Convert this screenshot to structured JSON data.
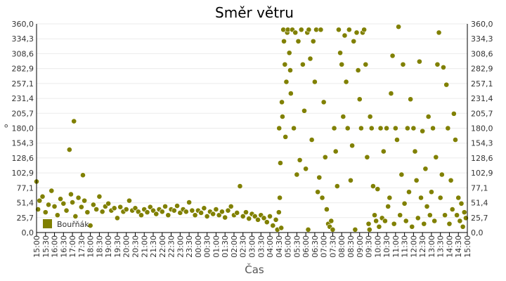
{
  "chart_data": {
    "type": "scatter",
    "title": "Směr větru",
    "xlabel": "Čas",
    "ylabel": "°",
    "ylim": [
      0,
      360
    ],
    "y_ticks": [
      "0,0",
      "25,7",
      "51,4",
      "77,1",
      "102,9",
      "128,6",
      "154,3",
      "180,0",
      "205,7",
      "231,4",
      "257,1",
      "282,9",
      "308,6",
      "334,3",
      "360,0"
    ],
    "x_ticks": [
      "15:00",
      "15:30",
      "16:00",
      "16:30",
      "17:00",
      "17:30",
      "18:00",
      "18:30",
      "19:00",
      "19:30",
      "20:00",
      "20:30",
      "21:00",
      "21:30",
      "22:00",
      "22:30",
      "23:00",
      "23:30",
      "00:00",
      "00:30",
      "01:00",
      "01:30",
      "02:00",
      "02:30",
      "03:00",
      "03:30",
      "04:00",
      "04:30",
      "05:00",
      "05:30",
      "06:00",
      "06:30",
      "07:00",
      "07:30",
      "08:00",
      "08:30",
      "09:00",
      "09:30",
      "10:00",
      "10:30",
      "11:00",
      "11:30",
      "12:00",
      "12:30",
      "13:00",
      "13:30",
      "14:00",
      "14:30",
      "15:00"
    ],
    "grid": true,
    "legend_position": "bottom-left",
    "series": [
      {
        "name": "Bouřňák",
        "color": "#808000",
        "points": [
          [
            "15:00",
            88
          ],
          [
            "15:05",
            40
          ],
          [
            "15:10",
            55
          ],
          [
            "15:20",
            62
          ],
          [
            "15:30",
            35
          ],
          [
            "15:40",
            48
          ],
          [
            "15:50",
            72
          ],
          [
            "16:00",
            45
          ],
          [
            "16:10",
            30
          ],
          [
            "16:20",
            58
          ],
          [
            "16:30",
            50
          ],
          [
            "16:40",
            38
          ],
          [
            "16:50",
            143
          ],
          [
            "16:55",
            66
          ],
          [
            "17:00",
            52
          ],
          [
            "17:05",
            192
          ],
          [
            "17:10",
            28
          ],
          [
            "17:20",
            60
          ],
          [
            "17:30",
            44
          ],
          [
            "17:35",
            99
          ],
          [
            "17:40",
            55
          ],
          [
            "17:50",
            35
          ],
          [
            "18:00",
            12
          ],
          [
            "18:10",
            48
          ],
          [
            "18:20",
            40
          ],
          [
            "18:30",
            62
          ],
          [
            "18:40",
            36
          ],
          [
            "18:50",
            45
          ],
          [
            "19:00",
            50
          ],
          [
            "19:10",
            38
          ],
          [
            "19:20",
            42
          ],
          [
            "19:30",
            25
          ],
          [
            "19:40",
            44
          ],
          [
            "19:50",
            36
          ],
          [
            "20:00",
            40
          ],
          [
            "20:10",
            55
          ],
          [
            "20:20",
            38
          ],
          [
            "20:30",
            42
          ],
          [
            "20:40",
            36
          ],
          [
            "20:50",
            30
          ],
          [
            "21:00",
            40
          ],
          [
            "21:10",
            35
          ],
          [
            "21:20",
            44
          ],
          [
            "21:30",
            38
          ],
          [
            "21:40",
            32
          ],
          [
            "21:50",
            40
          ],
          [
            "22:00",
            36
          ],
          [
            "22:10",
            45
          ],
          [
            "22:20",
            30
          ],
          [
            "22:30",
            40
          ],
          [
            "22:40",
            38
          ],
          [
            "22:50",
            46
          ],
          [
            "23:00",
            34
          ],
          [
            "23:10",
            40
          ],
          [
            "23:20",
            36
          ],
          [
            "23:30",
            52
          ],
          [
            "23:40",
            38
          ],
          [
            "23:50",
            30
          ],
          [
            "00:00",
            38
          ],
          [
            "00:10",
            34
          ],
          [
            "00:20",
            42
          ],
          [
            "00:30",
            28
          ],
          [
            "00:40",
            36
          ],
          [
            "00:50",
            32
          ],
          [
            "01:00",
            40
          ],
          [
            "01:10",
            30
          ],
          [
            "01:20",
            36
          ],
          [
            "01:30",
            26
          ],
          [
            "01:40",
            38
          ],
          [
            "01:50",
            45
          ],
          [
            "02:00",
            30
          ],
          [
            "02:10",
            34
          ],
          [
            "02:20",
            80
          ],
          [
            "02:30",
            28
          ],
          [
            "02:40",
            35
          ],
          [
            "02:50",
            24
          ],
          [
            "03:00",
            32
          ],
          [
            "03:10",
            28
          ],
          [
            "03:20",
            22
          ],
          [
            "03:30",
            30
          ],
          [
            "03:40",
            25
          ],
          [
            "03:50",
            18
          ],
          [
            "04:00",
            28
          ],
          [
            "04:10",
            12
          ],
          [
            "04:20",
            22
          ],
          [
            "04:25",
            5
          ],
          [
            "04:30",
            35
          ],
          [
            "04:31",
            180
          ],
          [
            "04:33",
            60
          ],
          [
            "04:35",
            120
          ],
          [
            "04:38",
            8
          ],
          [
            "04:40",
            225
          ],
          [
            "04:42",
            200
          ],
          [
            "04:45",
            350
          ],
          [
            "04:47",
            330
          ],
          [
            "04:50",
            290
          ],
          [
            "04:52",
            165
          ],
          [
            "04:55",
            260
          ],
          [
            "04:58",
            345
          ],
          [
            "05:00",
            350
          ],
          [
            "05:05",
            310
          ],
          [
            "05:08",
            280
          ],
          [
            "05:10",
            240
          ],
          [
            "05:15",
            350
          ],
          [
            "05:20",
            180
          ],
          [
            "05:25",
            345
          ],
          [
            "05:30",
            100
          ],
          [
            "05:35",
            330
          ],
          [
            "05:40",
            125
          ],
          [
            "05:45",
            350
          ],
          [
            "05:50",
            290
          ],
          [
            "05:55",
            210
          ],
          [
            "06:00",
            110
          ],
          [
            "06:05",
            345
          ],
          [
            "06:08",
            5
          ],
          [
            "06:10",
            350
          ],
          [
            "06:15",
            300
          ],
          [
            "06:20",
            160
          ],
          [
            "06:25",
            330
          ],
          [
            "06:30",
            260
          ],
          [
            "06:35",
            350
          ],
          [
            "06:40",
            70
          ],
          [
            "06:45",
            95
          ],
          [
            "06:50",
            350
          ],
          [
            "06:55",
            60
          ],
          [
            "07:00",
            225
          ],
          [
            "07:05",
            130
          ],
          [
            "07:10",
            40
          ],
          [
            "07:15",
            15
          ],
          [
            "07:20",
            10
          ],
          [
            "07:25",
            20
          ],
          [
            "07:30",
            5
          ],
          [
            "07:35",
            180
          ],
          [
            "07:40",
            140
          ],
          [
            "07:45",
            80
          ],
          [
            "07:50",
            350
          ],
          [
            "07:55",
            310
          ],
          [
            "08:00",
            290
          ],
          [
            "08:05",
            200
          ],
          [
            "08:10",
            340
          ],
          [
            "08:15",
            260
          ],
          [
            "08:20",
            180
          ],
          [
            "08:25",
            350
          ],
          [
            "08:30",
            90
          ],
          [
            "08:35",
            150
          ],
          [
            "08:40",
            330
          ],
          [
            "08:45",
            5
          ],
          [
            "08:50",
            345
          ],
          [
            "08:55",
            280
          ],
          [
            "09:00",
            230
          ],
          [
            "09:05",
            180
          ],
          [
            "09:10",
            345
          ],
          [
            "09:15",
            350
          ],
          [
            "09:20",
            290
          ],
          [
            "09:25",
            130
          ],
          [
            "09:30",
            15
          ],
          [
            "09:33",
            5
          ],
          [
            "09:35",
            200
          ],
          [
            "09:40",
            180
          ],
          [
            "09:45",
            80
          ],
          [
            "09:50",
            30
          ],
          [
            "09:55",
            20
          ],
          [
            "10:00",
            75
          ],
          [
            "10:05",
            10
          ],
          [
            "10:10",
            180
          ],
          [
            "10:15",
            25
          ],
          [
            "10:20",
            140
          ],
          [
            "10:25",
            20
          ],
          [
            "10:30",
            180
          ],
          [
            "10:35",
            45
          ],
          [
            "10:40",
            60
          ],
          [
            "10:45",
            240
          ],
          [
            "10:50",
            305
          ],
          [
            "10:55",
            15
          ],
          [
            "11:00",
            180
          ],
          [
            "11:05",
            160
          ],
          [
            "11:10",
            355
          ],
          [
            "11:15",
            30
          ],
          [
            "11:20",
            100
          ],
          [
            "11:25",
            290
          ],
          [
            "11:30",
            50
          ],
          [
            "11:35",
            20
          ],
          [
            "11:40",
            180
          ],
          [
            "11:45",
            70
          ],
          [
            "11:50",
            230
          ],
          [
            "11:55",
            10
          ],
          [
            "12:00",
            180
          ],
          [
            "12:05",
            140
          ],
          [
            "12:10",
            90
          ],
          [
            "12:15",
            25
          ],
          [
            "12:20",
            295
          ],
          [
            "12:25",
            60
          ],
          [
            "12:30",
            175
          ],
          [
            "12:35",
            15
          ],
          [
            "12:40",
            110
          ],
          [
            "12:45",
            45
          ],
          [
            "12:50",
            200
          ],
          [
            "12:55",
            30
          ],
          [
            "13:00",
            70
          ],
          [
            "13:05",
            180
          ],
          [
            "13:10",
            20
          ],
          [
            "13:15",
            130
          ],
          [
            "13:20",
            290
          ],
          [
            "13:25",
            345
          ],
          [
            "13:30",
            60
          ],
          [
            "13:35",
            100
          ],
          [
            "13:40",
            285
          ],
          [
            "13:45",
            30
          ],
          [
            "13:50",
            255
          ],
          [
            "13:55",
            180
          ],
          [
            "14:00",
            15
          ],
          [
            "14:05",
            90
          ],
          [
            "14:10",
            40
          ],
          [
            "14:15",
            205
          ],
          [
            "14:20",
            160
          ],
          [
            "14:25",
            30
          ],
          [
            "14:30",
            60
          ],
          [
            "14:35",
            20
          ],
          [
            "14:40",
            50
          ],
          [
            "14:45",
            10
          ],
          [
            "14:50",
            35
          ],
          [
            "14:55",
            25
          ]
        ]
      }
    ]
  }
}
